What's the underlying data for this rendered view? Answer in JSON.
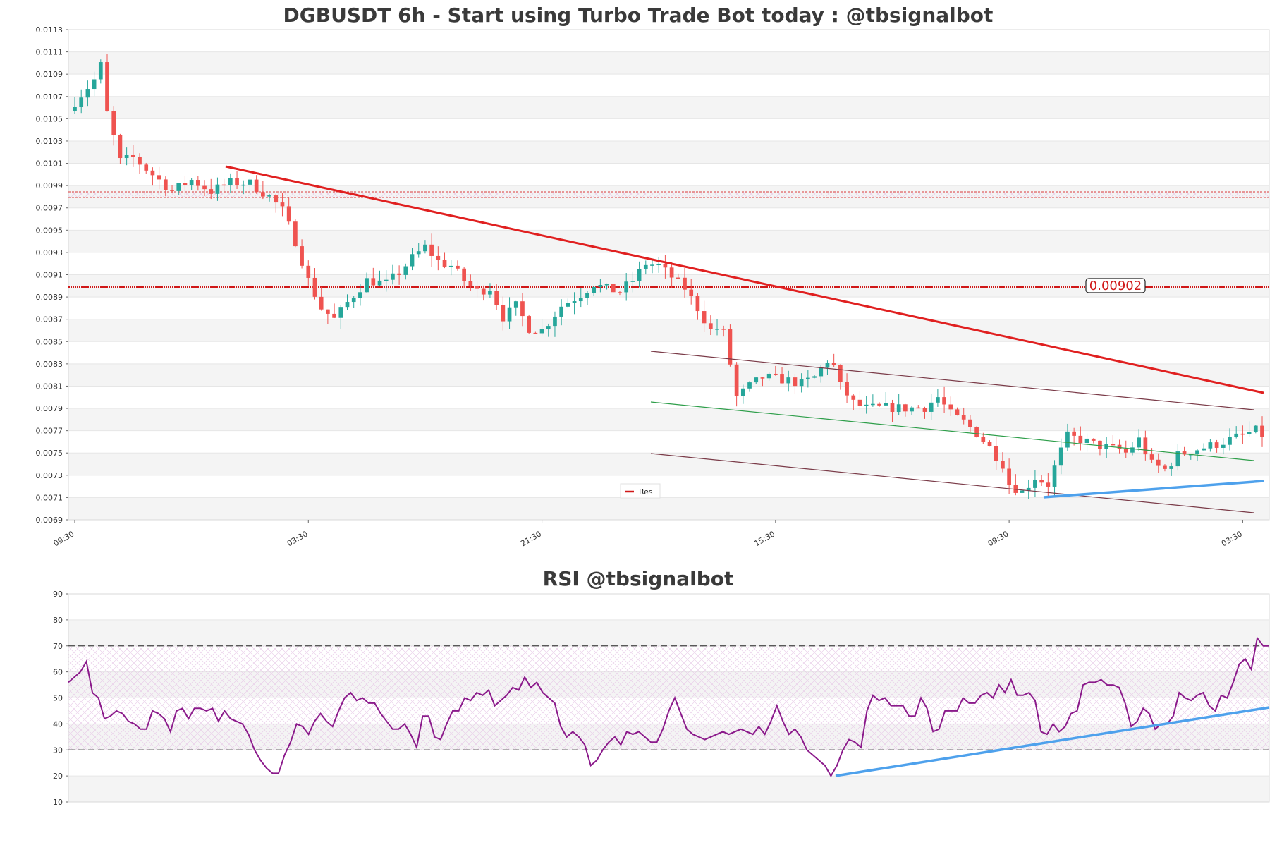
{
  "chart_data": [
    {
      "type": "candlestick",
      "title": "DGBUSDT 6h - Start using Turbo Trade Bot today : @tbsignalbot",
      "ylim": [
        0.0069,
        0.0113
      ],
      "y_ticks": [
        "0.0069",
        "0.0071",
        "0.0073",
        "0.0075",
        "0.0077",
        "0.0079",
        "0.0081",
        "0.0083",
        "0.0085",
        "0.0087",
        "0.0089",
        "0.0091",
        "0.0093",
        "0.0095",
        "0.0097",
        "0.0099",
        "0.0101",
        "0.0103",
        "0.0105",
        "0.0107",
        "0.0109",
        "0.0111",
        "0.0113"
      ],
      "x_ticks": [
        "09:30",
        "03:30",
        "21:30",
        "15:30",
        "09:30",
        "03:30"
      ],
      "x_tick_index": [
        0,
        36,
        72,
        108,
        144,
        180
      ],
      "candle_count": 184,
      "close_path": [
        [
          0,
          0.01065
        ],
        [
          3,
          0.01085
        ],
        [
          4,
          0.01098
        ],
        [
          5,
          0.01055
        ],
        [
          7,
          0.01012
        ],
        [
          9,
          0.01015
        ],
        [
          12,
          0.01
        ],
        [
          15,
          0.00985
        ],
        [
          18,
          0.00995
        ],
        [
          21,
          0.00985
        ],
        [
          24,
          0.00993
        ],
        [
          27,
          0.00992
        ],
        [
          30,
          0.0098
        ],
        [
          32,
          0.00968
        ],
        [
          34,
          0.0094
        ],
        [
          36,
          0.00905
        ],
        [
          38,
          0.0088
        ],
        [
          40,
          0.0087
        ],
        [
          42,
          0.00885
        ],
        [
          45,
          0.00905
        ],
        [
          48,
          0.00902
        ],
        [
          50,
          0.00912
        ],
        [
          52,
          0.00925
        ],
        [
          54,
          0.00935
        ],
        [
          56,
          0.00922
        ],
        [
          58,
          0.00918
        ],
        [
          60,
          0.00905
        ],
        [
          62,
          0.00895
        ],
        [
          64,
          0.00898
        ],
        [
          66,
          0.00872
        ],
        [
          68,
          0.00882
        ],
        [
          70,
          0.00862
        ],
        [
          72,
          0.0086
        ],
        [
          75,
          0.00882
        ],
        [
          78,
          0.00892
        ],
        [
          80,
          0.00902
        ],
        [
          82,
          0.00897
        ],
        [
          84,
          0.00895
        ],
        [
          86,
          0.00905
        ],
        [
          88,
          0.0092
        ],
        [
          90,
          0.00918
        ],
        [
          92,
          0.00908
        ],
        [
          94,
          0.00898
        ],
        [
          96,
          0.0088
        ],
        [
          98,
          0.0086
        ],
        [
          99,
          0.00862
        ],
        [
          100,
          0.00858
        ],
        [
          101,
          0.0083
        ],
        [
          102,
          0.008
        ],
        [
          104,
          0.0081
        ],
        [
          106,
          0.00818
        ],
        [
          108,
          0.00817
        ],
        [
          110,
          0.00815
        ],
        [
          112,
          0.00812
        ],
        [
          114,
          0.00818
        ],
        [
          116,
          0.00833
        ],
        [
          117,
          0.00828
        ],
        [
          118,
          0.0081
        ],
        [
          120,
          0.00795
        ],
        [
          122,
          0.0079
        ],
        [
          125,
          0.00791
        ],
        [
          128,
          0.0079
        ],
        [
          131,
          0.00791
        ],
        [
          133,
          0.008
        ],
        [
          135,
          0.00785
        ],
        [
          137,
          0.00778
        ],
        [
          139,
          0.00768
        ],
        [
          141,
          0.00755
        ],
        [
          143,
          0.0074
        ],
        [
          144,
          0.00722
        ],
        [
          146,
          0.00715
        ],
        [
          148,
          0.00728
        ],
        [
          150,
          0.00722
        ],
        [
          152,
          0.00752
        ],
        [
          153,
          0.00765
        ],
        [
          155,
          0.00762
        ],
        [
          157,
          0.00758
        ],
        [
          159,
          0.00755
        ],
        [
          161,
          0.00753
        ],
        [
          162,
          0.0075
        ],
        [
          164,
          0.00762
        ],
        [
          166,
          0.0074
        ],
        [
          168,
          0.00735
        ],
        [
          170,
          0.00748
        ],
        [
          172,
          0.00752
        ],
        [
          174,
          0.00755
        ],
        [
          176,
          0.00758
        ],
        [
          178,
          0.00762
        ],
        [
          180,
          0.00766
        ],
        [
          182,
          0.0077
        ],
        [
          184,
          0.00762
        ]
      ],
      "resistance_level": 0.00902,
      "resistance_label": "0.00902",
      "upper_zone_level": 0.00983,
      "legend": [
        "Res"
      ]
    },
    {
      "type": "line",
      "title": "RSI @tbsignalbot",
      "ylim": [
        10,
        90
      ],
      "y_ticks": [
        "10",
        "20",
        "30",
        "40",
        "50",
        "60",
        "70",
        "80",
        "90"
      ],
      "overbought": 70,
      "oversold": 30,
      "values_path": [
        [
          0,
          56
        ],
        [
          2,
          60
        ],
        [
          3,
          64
        ],
        [
          4,
          52
        ],
        [
          5,
          50
        ],
        [
          6,
          42
        ],
        [
          7,
          43
        ],
        [
          8,
          45
        ],
        [
          9,
          44
        ],
        [
          10,
          41
        ],
        [
          11,
          40
        ],
        [
          12,
          38
        ],
        [
          13,
          38
        ],
        [
          14,
          45
        ],
        [
          15,
          44
        ],
        [
          16,
          42
        ],
        [
          17,
          37
        ],
        [
          18,
          45
        ],
        [
          19,
          46
        ],
        [
          20,
          42
        ],
        [
          21,
          46
        ],
        [
          22,
          46
        ],
        [
          23,
          45
        ],
        [
          24,
          46
        ],
        [
          25,
          41
        ],
        [
          26,
          45
        ],
        [
          27,
          42
        ],
        [
          28,
          41
        ],
        [
          29,
          40
        ],
        [
          30,
          36
        ],
        [
          31,
          30
        ],
        [
          32,
          26
        ],
        [
          33,
          23
        ],
        [
          34,
          21
        ],
        [
          35,
          21
        ],
        [
          36,
          28
        ],
        [
          37,
          33
        ],
        [
          38,
          40
        ],
        [
          39,
          39
        ],
        [
          40,
          36
        ],
        [
          41,
          41
        ],
        [
          42,
          44
        ],
        [
          43,
          41
        ],
        [
          44,
          39
        ],
        [
          45,
          45
        ],
        [
          46,
          50
        ],
        [
          47,
          52
        ],
        [
          48,
          49
        ],
        [
          49,
          50
        ],
        [
          50,
          48
        ],
        [
          51,
          48
        ],
        [
          52,
          44
        ],
        [
          53,
          41
        ],
        [
          54,
          38
        ],
        [
          55,
          38
        ],
        [
          56,
          40
        ],
        [
          57,
          36
        ],
        [
          58,
          31
        ],
        [
          59,
          43
        ],
        [
          60,
          43
        ],
        [
          61,
          35
        ],
        [
          62,
          34
        ],
        [
          63,
          40
        ],
        [
          64,
          45
        ],
        [
          65,
          45
        ],
        [
          66,
          50
        ],
        [
          67,
          49
        ],
        [
          68,
          52
        ],
        [
          69,
          51
        ],
        [
          70,
          53
        ],
        [
          71,
          47
        ],
        [
          72,
          49
        ],
        [
          73,
          51
        ],
        [
          74,
          54
        ],
        [
          75,
          53
        ],
        [
          76,
          58
        ],
        [
          77,
          54
        ],
        [
          78,
          56
        ],
        [
          79,
          52
        ],
        [
          80,
          50
        ],
        [
          81,
          48
        ],
        [
          82,
          39
        ],
        [
          83,
          35
        ],
        [
          84,
          37
        ],
        [
          85,
          35
        ],
        [
          86,
          32
        ],
        [
          87,
          24
        ],
        [
          88,
          26
        ],
        [
          89,
          30
        ],
        [
          90,
          33
        ],
        [
          91,
          35
        ],
        [
          92,
          32
        ],
        [
          93,
          37
        ],
        [
          94,
          36
        ],
        [
          95,
          37
        ],
        [
          96,
          35
        ],
        [
          97,
          33
        ],
        [
          98,
          33
        ],
        [
          99,
          38
        ],
        [
          100,
          45
        ],
        [
          101,
          50
        ],
        [
          102,
          44
        ],
        [
          103,
          38
        ],
        [
          104,
          36
        ],
        [
          105,
          35
        ],
        [
          106,
          34
        ],
        [
          107,
          35
        ],
        [
          108,
          36
        ],
        [
          109,
          37
        ],
        [
          110,
          36
        ],
        [
          111,
          37
        ],
        [
          112,
          38
        ],
        [
          113,
          37
        ],
        [
          114,
          36
        ],
        [
          115,
          39
        ],
        [
          116,
          36
        ],
        [
          117,
          41
        ],
        [
          118,
          47
        ],
        [
          119,
          41
        ],
        [
          120,
          36
        ],
        [
          121,
          38
        ],
        [
          122,
          35
        ],
        [
          123,
          30
        ],
        [
          124,
          28
        ],
        [
          125,
          26
        ],
        [
          126,
          24
        ],
        [
          127,
          20
        ],
        [
          128,
          24
        ],
        [
          129,
          30
        ],
        [
          130,
          34
        ],
        [
          131,
          33
        ],
        [
          132,
          31
        ],
        [
          133,
          45
        ],
        [
          134,
          51
        ],
        [
          135,
          49
        ],
        [
          136,
          50
        ],
        [
          137,
          47
        ],
        [
          138,
          47
        ],
        [
          139,
          47
        ],
        [
          140,
          43
        ],
        [
          141,
          43
        ],
        [
          142,
          50
        ],
        [
          143,
          46
        ],
        [
          144,
          37
        ],
        [
          145,
          38
        ],
        [
          146,
          45
        ],
        [
          147,
          45
        ],
        [
          148,
          45
        ],
        [
          149,
          50
        ],
        [
          150,
          48
        ],
        [
          151,
          48
        ],
        [
          152,
          51
        ],
        [
          153,
          52
        ],
        [
          154,
          50
        ],
        [
          155,
          55
        ],
        [
          156,
          52
        ],
        [
          157,
          57
        ],
        [
          158,
          51
        ],
        [
          159,
          51
        ],
        [
          160,
          52
        ],
        [
          161,
          49
        ],
        [
          162,
          37
        ],
        [
          163,
          36
        ],
        [
          164,
          40
        ],
        [
          165,
          37
        ],
        [
          166,
          39
        ],
        [
          167,
          44
        ],
        [
          168,
          45
        ],
        [
          169,
          55
        ],
        [
          170,
          56
        ],
        [
          171,
          56
        ],
        [
          172,
          57
        ],
        [
          173,
          55
        ],
        [
          174,
          55
        ],
        [
          175,
          54
        ],
        [
          176,
          48
        ],
        [
          177,
          39
        ],
        [
          178,
          41
        ],
        [
          179,
          46
        ],
        [
          180,
          44
        ],
        [
          181,
          38
        ],
        [
          182,
          40
        ],
        [
          183,
          40
        ],
        [
          184,
          43
        ],
        [
          185,
          52
        ],
        [
          186,
          50
        ],
        [
          187,
          49
        ],
        [
          188,
          51
        ],
        [
          189,
          52
        ],
        [
          190,
          47
        ],
        [
          191,
          45
        ],
        [
          192,
          51
        ],
        [
          193,
          50
        ],
        [
          194,
          56
        ],
        [
          195,
          63
        ],
        [
          196,
          65
        ],
        [
          197,
          61
        ],
        [
          198,
          73
        ],
        [
          199,
          70
        ],
        [
          200,
          70
        ]
      ],
      "rsi_count": 200
    }
  ],
  "colors": {
    "up": "#26a69a",
    "down": "#ef5350",
    "resistance": "#e02020",
    "channel": "#7a3b48",
    "mid_channel": "#2e9e4a",
    "support_trend": "#4ea1ec",
    "rsi_line": "#8b1a8b"
  }
}
